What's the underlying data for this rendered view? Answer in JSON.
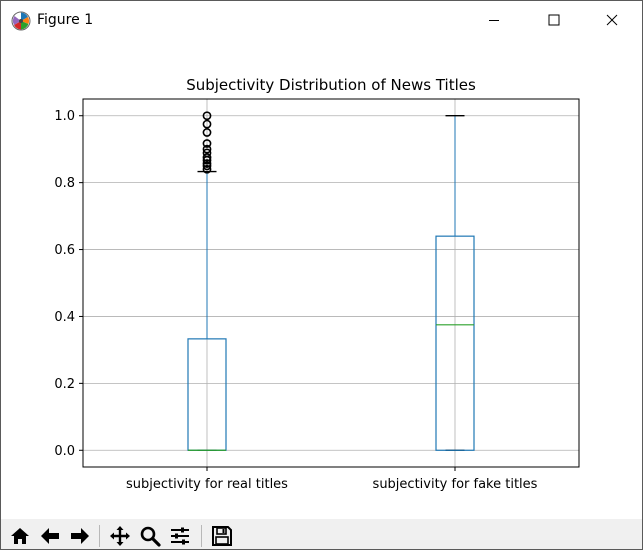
{
  "window": {
    "title": "Figure 1"
  },
  "icons": {
    "app": "matplotlib-icon",
    "minimize": "minimize-icon",
    "maximize": "maximize-icon",
    "close": "close-icon"
  },
  "toolbar": {
    "buttons": [
      {
        "name": "home-icon",
        "tooltip": "Reset original view"
      },
      {
        "name": "back-arrow-icon",
        "tooltip": "Back to previous view"
      },
      {
        "name": "forward-arrow-icon",
        "tooltip": "Forward to next view"
      },
      {
        "name": "pan-icon",
        "tooltip": "Pan axes"
      },
      {
        "name": "zoom-icon",
        "tooltip": "Zoom to rectangle"
      },
      {
        "name": "configure-subplots-icon",
        "tooltip": "Configure subplots"
      },
      {
        "name": "save-icon",
        "tooltip": "Save the figure"
      }
    ]
  },
  "colors": {
    "box": "#1f77b4",
    "median": "#2ca02c",
    "grid": "#b0b0b0",
    "flier_edge": "#000000"
  },
  "chart_data": {
    "type": "box",
    "title": "Subjectivity Distribution of News Titles",
    "xlabel": "",
    "ylabel": "",
    "categories": [
      "subjectivity for real titles",
      "subjectivity for fake titles"
    ],
    "ylim": [
      -0.05,
      1.05
    ],
    "yticks": [
      0.0,
      0.2,
      0.4,
      0.6,
      0.8,
      1.0
    ],
    "ytick_labels": [
      "0.0",
      "0.2",
      "0.4",
      "0.6",
      "0.8",
      "1.0"
    ],
    "grid": true,
    "series": [
      {
        "category": "subjectivity for real titles",
        "whisker_low": 0.0,
        "q1": 0.0,
        "median": 0.0,
        "q3": 0.333,
        "whisker_high": 0.833,
        "fliers": [
          0.84,
          0.85,
          0.857,
          0.867,
          0.875,
          0.889,
          0.9,
          0.917,
          0.95,
          0.975,
          1.0
        ]
      },
      {
        "category": "subjectivity for fake titles",
        "whisker_low": 0.0,
        "q1": 0.0,
        "median": 0.375,
        "q3": 0.64,
        "whisker_high": 1.0,
        "fliers": []
      }
    ]
  }
}
